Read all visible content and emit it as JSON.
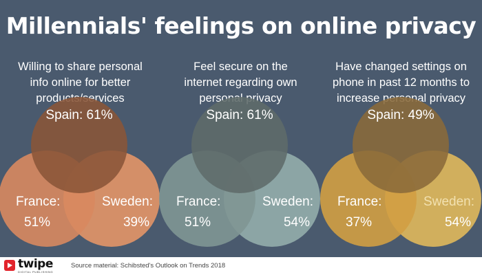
{
  "title": "Millennials' feelings on online privacy",
  "chart_data": [
    {
      "type": "venn",
      "caption_lines": [
        "Willing to share personal",
        "info online for better",
        "products/services"
      ],
      "series": [
        {
          "name": "Spain",
          "value": 61,
          "label": "Spain: 61%",
          "color": "#8a5538"
        },
        {
          "name": "France",
          "value": 51,
          "label_lines": [
            "France:",
            "51%"
          ],
          "color": "#d8885f"
        },
        {
          "name": "Sweden",
          "value": 39,
          "label": "Sweden:",
          "value_label": "39%",
          "color": "#e39567"
        }
      ]
    },
    {
      "type": "venn",
      "caption_lines": [
        "Feel secure on the",
        "internet regarding own",
        "personal privacy"
      ],
      "series": [
        {
          "name": "Spain",
          "value": 61,
          "label": "Spain: 61%",
          "color": "#5f6b6a"
        },
        {
          "name": "France",
          "value": 51,
          "label_lines": [
            "France:",
            "51%"
          ],
          "color": "#7f9693"
        },
        {
          "name": "Sweden",
          "value": 54,
          "label": "Sweden:",
          "value_label": "54%",
          "color": "#93adab"
        }
      ]
    },
    {
      "type": "venn",
      "caption_lines": [
        "Have changed settings on",
        "phone in past 12 months to",
        "increase personal privacy"
      ],
      "series": [
        {
          "name": "Spain",
          "value": 49,
          "label": "Spain: 49%",
          "color": "#8a6a3a"
        },
        {
          "name": "France",
          "value": 37,
          "label_lines": [
            "France:",
            "37%"
          ],
          "color": "#d29f42"
        },
        {
          "name": "Sweden",
          "value": 54,
          "label": "Sweden:",
          "value_label": "54%",
          "color": "#e0b85b"
        }
      ]
    }
  ],
  "footer": {
    "brand": "twipe",
    "brand_sub": "DIGITAL PUBLISHING",
    "source": "Source material: Schibsted's Outlook on Trends 2018",
    "brand_color": "#e2242c"
  }
}
